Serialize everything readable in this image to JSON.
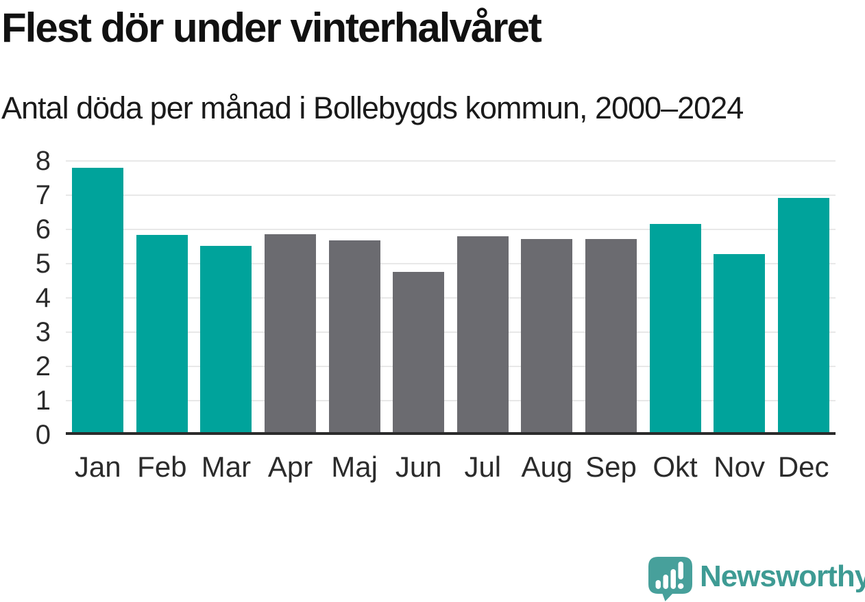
{
  "header": {
    "title": "Flest dör under vinterhalvåret",
    "subtitle": "Antal döda per månad i Bollebygds kommun, 2000–2024"
  },
  "chart_data": {
    "type": "bar",
    "title": "Flest dör under vinterhalvåret",
    "subtitle": "Antal döda per månad i Bollebygds kommun, 2000–2024",
    "categories": [
      "Jan",
      "Feb",
      "Mar",
      "Apr",
      "Maj",
      "Jun",
      "Jul",
      "Aug",
      "Sep",
      "Okt",
      "Nov",
      "Dec"
    ],
    "values": [
      7.72,
      5.76,
      5.44,
      5.78,
      5.6,
      4.68,
      5.72,
      5.64,
      5.64,
      6.08,
      5.2,
      6.84
    ],
    "highlighted": [
      true,
      true,
      true,
      false,
      false,
      false,
      false,
      false,
      false,
      true,
      true,
      true
    ],
    "xlabel": "",
    "ylabel": "",
    "ylim": [
      0,
      8
    ],
    "y_ticks": [
      0,
      1,
      2,
      3,
      4,
      5,
      6,
      7,
      8
    ],
    "grid": true,
    "legend": "none",
    "colors": {
      "highlight_bar": "#00A39B",
      "normal_bar": "#6B6B70",
      "gridline": "#E8E8E8",
      "axis_line": "#2B2B2B",
      "tick_text": "#2B2B2B"
    }
  },
  "footer": {
    "brand": "Newsworthy",
    "brand_text_color": "#3E9B94",
    "logo_bubble_color": "#47A09B"
  }
}
